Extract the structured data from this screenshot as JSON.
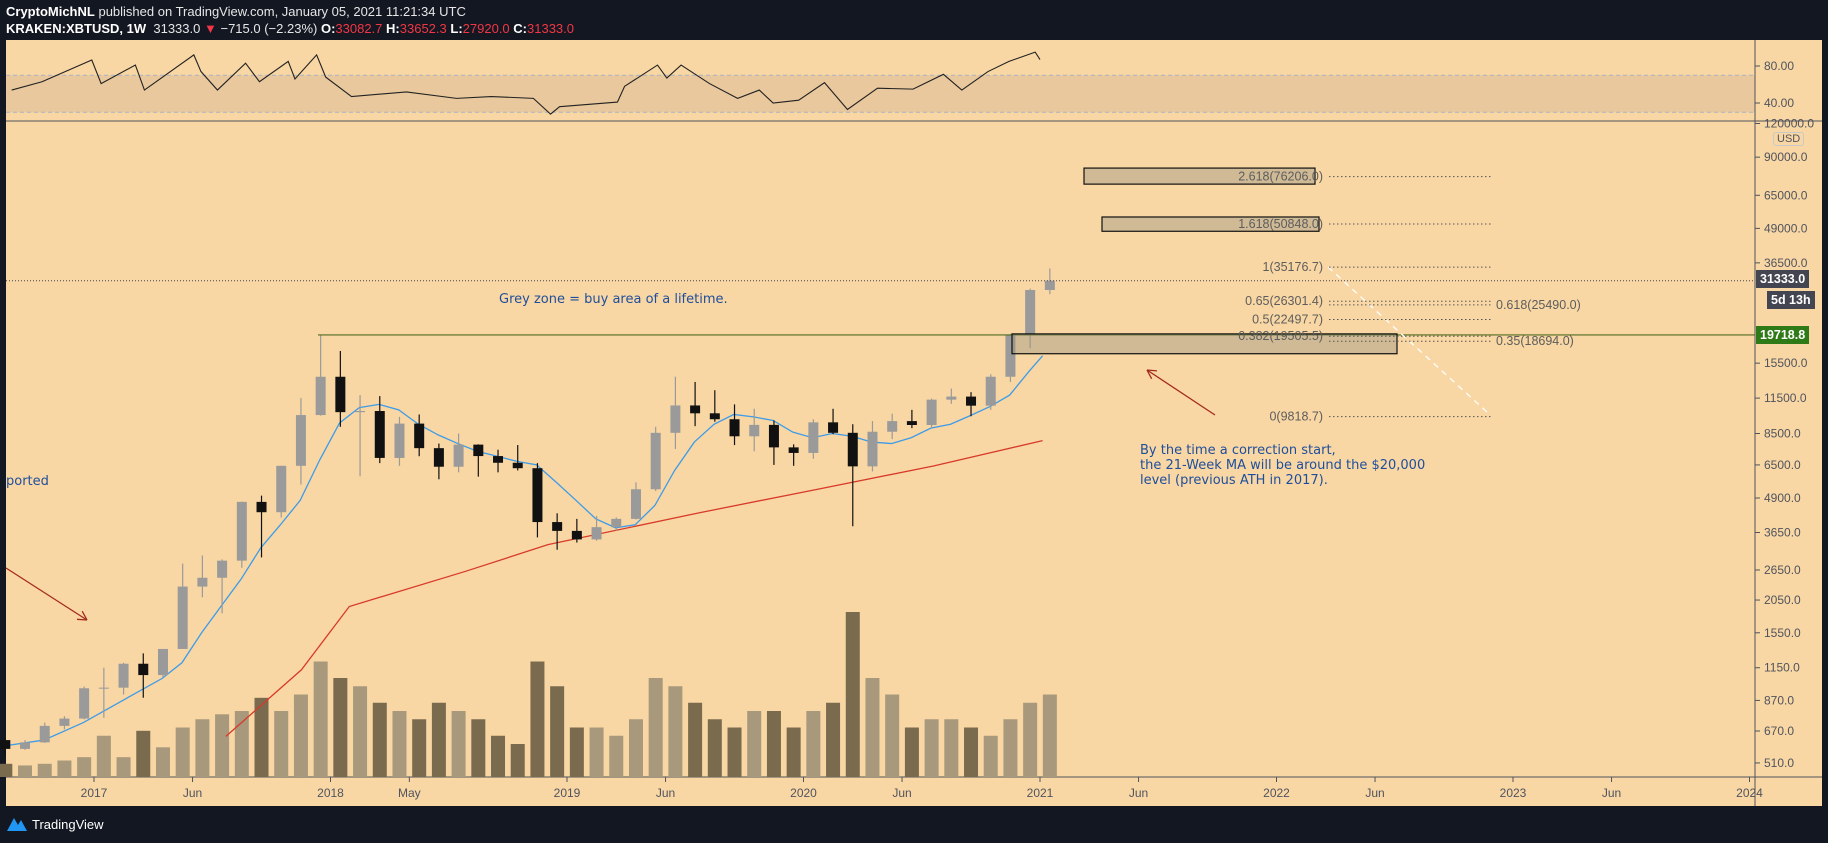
{
  "header": {
    "author": "CryptoMichNL",
    "published": "published on TradingView.com, January 05, 2021 11:21:34 UTC",
    "symbol": "KRAKEN:XBTUSD, 1W",
    "last": "31333.0",
    "change": "−715.0 (−2.23%)",
    "o_label": "O:",
    "o": "33082.7",
    "h_label": "H:",
    "h": "33652.3",
    "l_label": "L:",
    "l": "27920.0",
    "c_label": "C:",
    "c": "31333.0"
  },
  "colors": {
    "background": "#f8d7a4",
    "up_candle": "#9a9a9a",
    "down_candle": "#111111",
    "ma21": "#3d9be9",
    "ma200": "#d83a2a",
    "annotation": "#1f4e9c",
    "ath_line": "#4f6b1f",
    "current_price_tag": "#434651",
    "ath_tag": "#2e7a17"
  },
  "price_axis": {
    "currency": "USD",
    "ticks": [
      "120000.0",
      "90000.0",
      "65000.0",
      "49000.0",
      "36500.0",
      "15500.0",
      "11500.0",
      "8500.0",
      "6500.0",
      "4900.0",
      "3650.0",
      "2650.0",
      "2050.0",
      "1550.0",
      "1150.0",
      "870.0",
      "670.0",
      "510.0"
    ],
    "current_price": "31333.0",
    "countdown": "5d 13h",
    "ath_level": "19718.8",
    "scale": "log"
  },
  "rsi_axis": {
    "ticks": [
      "80.00",
      "40.00"
    ],
    "band": [
      30,
      70
    ]
  },
  "time_axis": {
    "ticks": [
      [
        "2017",
        "2017-01-01"
      ],
      [
        "Jun",
        "2017-06-01"
      ],
      [
        "2018",
        "2018-01-01"
      ],
      [
        "May",
        "2018-05-01"
      ],
      [
        "2019",
        "2019-01-01"
      ],
      [
        "Jun",
        "2019-06-01"
      ],
      [
        "2020",
        "2020-01-01"
      ],
      [
        "Jun",
        "2020-06-01"
      ],
      [
        "2021",
        "2021-01-01"
      ],
      [
        "Jun",
        "2021-06-01"
      ],
      [
        "2022",
        "2022-01-01"
      ],
      [
        "Jun",
        "2022-06-01"
      ],
      [
        "2023",
        "2023-01-01"
      ],
      [
        "Jun",
        "2023-06-01"
      ],
      [
        "2024",
        "2024-01-01"
      ]
    ]
  },
  "fib": [
    {
      "label": "2.618(76206.0)",
      "price": 76206.0
    },
    {
      "label": "1.618(50848.0)",
      "price": 50848.0
    },
    {
      "label": "1(35176.7)",
      "price": 35176.7
    },
    {
      "label": "0.65(26301.4)",
      "price": 26301.4
    },
    {
      "label": "0.618(25490.0)",
      "price": 25490.0
    },
    {
      "label": "0.5(22497.7)",
      "price": 22497.7
    },
    {
      "label": "0.382(19505.5)",
      "price": 19505.5
    },
    {
      "label": "0.35(18694.0)",
      "price": 18694.0
    },
    {
      "label": "0(9818.7)",
      "price": 9818.7
    }
  ],
  "annotations": {
    "grey_zone": "Grey zone = buy area of a lifetime.",
    "left_cut": "ported",
    "correction": [
      "By the time a correction start,",
      "the 21-Week MA will be around the $20,000",
      "level (previous ATH in 2017)."
    ]
  },
  "footer": {
    "brand": "TradingView"
  },
  "chart_data": {
    "type": "candlestick",
    "title": "",
    "yscale": "log",
    "ylim": [
      480,
      125000
    ],
    "grid": false,
    "candles": [
      [
        "2016-08",
        620,
        630,
        540,
        575
      ],
      [
        "2016-09",
        575,
        620,
        570,
        608
      ],
      [
        "2016-10",
        608,
        720,
        605,
        700
      ],
      [
        "2016-11",
        700,
        760,
        680,
        745
      ],
      [
        "2016-12",
        745,
        980,
        740,
        965
      ],
      [
        "2017-01",
        965,
        1150,
        750,
        970
      ],
      [
        "2017-02",
        970,
        1200,
        915,
        1190
      ],
      [
        "2017-03",
        1190,
        1300,
        890,
        1080
      ],
      [
        "2017-04",
        1080,
        1350,
        1060,
        1350
      ],
      [
        "2017-05",
        1350,
        2800,
        1350,
        2300
      ],
      [
        "2017-06",
        2300,
        3000,
        2100,
        2480
      ],
      [
        "2017-07",
        2480,
        2900,
        1830,
        2870
      ],
      [
        "2017-08",
        2870,
        4750,
        2700,
        4740
      ],
      [
        "2017-09",
        4740,
        5000,
        2950,
        4340
      ],
      [
        "2017-10",
        4340,
        6450,
        4150,
        6450
      ],
      [
        "2017-11",
        6450,
        11500,
        5500,
        9950
      ],
      [
        "2017-12",
        9950,
        19650,
        9900,
        13800
      ],
      [
        "2018-01",
        13800,
        17200,
        9000,
        10200
      ],
      [
        "2018-02",
        10200,
        11800,
        5900,
        10300
      ],
      [
        "2018-03",
        10300,
        11700,
        6600,
        6900
      ],
      [
        "2018-04",
        6900,
        9800,
        6450,
        9250
      ],
      [
        "2018-05",
        9250,
        10000,
        7000,
        7500
      ],
      [
        "2018-06",
        7500,
        7800,
        5750,
        6400
      ],
      [
        "2018-07",
        6400,
        8500,
        6100,
        7730
      ],
      [
        "2018-08",
        7730,
        7750,
        5880,
        7010
      ],
      [
        "2018-09",
        7010,
        7400,
        6100,
        6620
      ],
      [
        "2018-10",
        6620,
        7700,
        6200,
        6320
      ],
      [
        "2018-11",
        6320,
        6600,
        3500,
        3990
      ],
      [
        "2018-12",
        3990,
        4300,
        3150,
        3700
      ],
      [
        "2019-01",
        3700,
        4100,
        3350,
        3440
      ],
      [
        "2019-02",
        3440,
        4200,
        3400,
        3820
      ],
      [
        "2019-03",
        3820,
        4150,
        3700,
        4100
      ],
      [
        "2019-04",
        4100,
        5600,
        4080,
        5280
      ],
      [
        "2019-05",
        5280,
        9000,
        5200,
        8550
      ],
      [
        "2019-06",
        8550,
        13800,
        7450,
        10800
      ],
      [
        "2019-07",
        10800,
        13200,
        9050,
        10100
      ],
      [
        "2019-08",
        10100,
        12300,
        9400,
        9600
      ],
      [
        "2019-09",
        9600,
        10900,
        7700,
        8300
      ],
      [
        "2019-10",
        8300,
        10500,
        7300,
        9150
      ],
      [
        "2019-11",
        9150,
        9500,
        6500,
        7550
      ],
      [
        "2019-12",
        7550,
        7750,
        6450,
        7200
      ],
      [
        "2020-01",
        7200,
        9600,
        6850,
        9350
      ],
      [
        "2020-02",
        9350,
        10500,
        8450,
        8550
      ],
      [
        "2020-03",
        8550,
        9200,
        3850,
        6420
      ],
      [
        "2020-04",
        6420,
        9450,
        6150,
        8630
      ],
      [
        "2020-05",
        8630,
        10070,
        8100,
        9450
      ],
      [
        "2020-06",
        9450,
        10400,
        8900,
        9140
      ],
      [
        "2020-07",
        9140,
        11450,
        8900,
        11350
      ],
      [
        "2020-08",
        11350,
        12480,
        10950,
        11650
      ],
      [
        "2020-09",
        11650,
        12100,
        9850,
        10780
      ],
      [
        "2020-10",
        10780,
        14100,
        10400,
        13800
      ],
      [
        "2020-11",
        13800,
        19900,
        13200,
        19700
      ],
      [
        "2020-12",
        19700,
        29300,
        17600,
        28950
      ],
      [
        "2021-01",
        28950,
        34800,
        27920,
        31333
      ]
    ],
    "volume_relative": [
      8,
      7,
      8,
      10,
      12,
      25,
      12,
      28,
      18,
      30,
      35,
      38,
      40,
      48,
      40,
      50,
      70,
      60,
      55,
      45,
      40,
      35,
      45,
      40,
      35,
      25,
      20,
      70,
      55,
      30,
      30,
      25,
      35,
      60,
      55,
      45,
      35,
      30,
      40,
      40,
      30,
      40,
      45,
      100,
      60,
      50,
      30,
      35,
      35,
      30,
      25,
      35,
      45,
      50
    ],
    "ma21": [
      [
        "2016-08-15",
        590
      ],
      [
        "2016-10-15",
        620
      ],
      [
        "2016-12-15",
        720
      ],
      [
        "2017-02-15",
        870
      ],
      [
        "2017-04-15",
        1050
      ],
      [
        "2017-05-15",
        1200
      ],
      [
        "2017-06-15",
        1550
      ],
      [
        "2017-07-15",
        1950
      ],
      [
        "2017-08-15",
        2450
      ],
      [
        "2017-09-15",
        3200
      ],
      [
        "2017-10-15",
        3900
      ],
      [
        "2017-11-15",
        4800
      ],
      [
        "2017-12-15",
        6800
      ],
      [
        "2018-01-15",
        9300
      ],
      [
        "2018-02-15",
        10600
      ],
      [
        "2018-03-15",
        10900
      ],
      [
        "2018-04-15",
        10400
      ],
      [
        "2018-05-15",
        9200
      ],
      [
        "2018-06-15",
        8400
      ],
      [
        "2018-07-15",
        7800
      ],
      [
        "2018-08-15",
        7300
      ],
      [
        "2018-09-15",
        7000
      ],
      [
        "2018-10-15",
        6700
      ],
      [
        "2018-11-15",
        6500
      ],
      [
        "2018-12-15",
        5600
      ],
      [
        "2019-01-15",
        4800
      ],
      [
        "2019-02-15",
        4100
      ],
      [
        "2019-03-15",
        3800
      ],
      [
        "2019-04-15",
        3900
      ],
      [
        "2019-05-15",
        4600
      ],
      [
        "2019-06-15",
        6200
      ],
      [
        "2019-07-15",
        7900
      ],
      [
        "2019-08-15",
        9200
      ],
      [
        "2019-09-15",
        10000
      ],
      [
        "2019-10-15",
        9800
      ],
      [
        "2019-11-15",
        9500
      ],
      [
        "2019-12-15",
        8600
      ],
      [
        "2020-01-15",
        8200
      ],
      [
        "2020-02-15",
        8500
      ],
      [
        "2020-03-15",
        8300
      ],
      [
        "2020-04-15",
        7900
      ],
      [
        "2020-05-15",
        7800
      ],
      [
        "2020-06-15",
        8200
      ],
      [
        "2020-07-15",
        8900
      ],
      [
        "2020-08-15",
        9200
      ],
      [
        "2020-09-15",
        9900
      ],
      [
        "2020-10-15",
        10700
      ],
      [
        "2020-11-15",
        11800
      ],
      [
        "2020-12-15",
        14500
      ],
      [
        "2021-01-05",
        16500
      ]
    ],
    "ma200": [
      [
        "2017-07-22",
        640
      ],
      [
        "2017-11-17",
        1130
      ],
      [
        "2018-01-30",
        1940
      ],
      [
        "2018-07-27",
        2620
      ],
      [
        "2018-12-02",
        3290
      ],
      [
        "2019-07-23",
        4320
      ],
      [
        "2020-01-19",
        5260
      ],
      [
        "2020-07-19",
        6440
      ],
      [
        "2021-01-05",
        8000
      ]
    ],
    "rsi": [
      [
        "2016-08-26",
        54
      ],
      [
        "2016-10-12",
        63
      ],
      [
        "2016-12-28",
        86.5
      ],
      [
        "2017-01-12",
        61
      ],
      [
        "2017-03-04",
        81
      ],
      [
        "2017-03-18",
        54
      ],
      [
        "2017-06-03",
        92
      ],
      [
        "2017-06-14",
        74
      ],
      [
        "2017-07-09",
        54
      ],
      [
        "2017-08-22",
        83
      ],
      [
        "2017-09-13",
        63
      ],
      [
        "2017-10-27",
        85
      ],
      [
        "2017-11-07",
        66
      ],
      [
        "2017-12-10",
        92
      ],
      [
        "2017-12-24",
        68
      ],
      [
        "2018-02-03",
        47
      ],
      [
        "2018-04-27",
        52
      ],
      [
        "2018-07-13",
        45
      ],
      [
        "2018-09-06",
        47
      ],
      [
        "2018-11-10",
        45
      ],
      [
        "2018-12-06",
        28
      ],
      [
        "2018-12-20",
        36
      ],
      [
        "2019-03-18",
        41
      ],
      [
        "2019-03-29",
        58
      ],
      [
        "2019-05-19",
        81
      ],
      [
        "2019-06-03",
        67
      ],
      [
        "2019-06-25",
        81
      ],
      [
        "2019-08-08",
        61
      ],
      [
        "2019-09-21",
        45
      ],
      [
        "2019-10-24",
        54
      ],
      [
        "2019-11-15",
        40
      ],
      [
        "2019-12-24",
        43
      ],
      [
        "2020-02-03",
        62
      ],
      [
        "2020-03-08",
        33
      ],
      [
        "2020-04-24",
        56
      ],
      [
        "2020-06-18",
        55
      ],
      [
        "2020-08-04",
        71
      ],
      [
        "2020-09-02",
        54
      ],
      [
        "2020-10-12",
        74
      ],
      [
        "2020-11-14",
        85
      ],
      [
        "2020-12-24",
        95
      ],
      [
        "2021-01-01",
        87
      ]
    ]
  }
}
